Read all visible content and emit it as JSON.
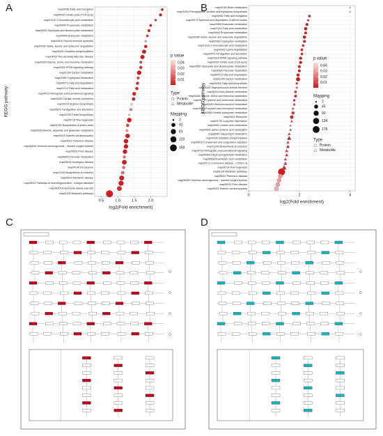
{
  "panel_labels": [
    "A",
    "B",
    "C",
    "D"
  ],
  "chart_data": [
    {
      "type": "dot",
      "x_label": "log2(Fold enrichment)",
      "y_label": "KEGG pathway",
      "categories": [
        "map00062 Fatty acid elongation",
        "map00020 Citrate cycle (TCA cycle)",
        "map01210 2-Oxocarboxylic acid metabolism",
        "map00640 Propanoate metabolism",
        "map00630 Glyoxylate and dicarboxylate metabolism",
        "map00650 Butanoate metabolism",
        "map04918 Thyroid hormone synthesis",
        "map00280 Valine, leucine and isoleucine degradation",
        "map00190 Oxidative phosphorylation",
        "map04932 Non-alcoholic fatty liver disease",
        "map00260 Glycine, serine and threonine metabolism",
        "map03320 PPAR signaling pathway",
        "map01200 Carbon metabolism",
        "map00380 Tryptophan metabolism",
        "map00071 Fatty acid degradation",
        "map01212 Fatty acid metabolism",
        "map04723 Retrograde endocannabinoid signaling",
        "map04260 Cardiac muscle contraction",
        "map00220 Arginine biosynthesis",
        "map04975 Fat digestion and absorption",
        "map00790 Folate biosynthesis",
        "map04714 Thermogenesis",
        "map01230 Biosynthesis of amino acids",
        "map00250 Alanine, aspartate and glutamate metabolism",
        "map05415 Diabetic cardiomyopathy",
        "map05012 Parkinson disease",
        "map05208 Chemical carcinogenesis - reactive oxygen species",
        "map05020 Prion disease",
        "map00620 Pyruvate metabolism",
        "map05016 Huntington disease",
        "map04146 Peroxisome",
        "map01240 Biosynthesis of cofactors",
        "map05010 Alzheimer disease",
        "map05022 Pathways of neurodegeneration - multiple diseases",
        "map05014 Amyotrophic lateral sclerosis",
        "map01100 Metabolic pathways"
      ],
      "values": [
        2.35,
        2.3,
        2.15,
        2.0,
        1.95,
        1.9,
        1.85,
        1.85,
        1.8,
        1.75,
        1.7,
        1.7,
        1.65,
        1.62,
        1.6,
        1.58,
        1.5,
        1.48,
        1.42,
        1.4,
        1.35,
        1.35,
        1.3,
        1.28,
        1.3,
        1.25,
        1.25,
        1.22,
        1.2,
        1.2,
        1.18,
        1.15,
        1.12,
        1.1,
        1.05,
        0.75
      ],
      "sizes": [
        10,
        15,
        8,
        12,
        14,
        10,
        6,
        20,
        40,
        45,
        12,
        18,
        50,
        14,
        18,
        20,
        30,
        25,
        6,
        10,
        5,
        55,
        20,
        12,
        50,
        55,
        50,
        52,
        14,
        60,
        18,
        25,
        65,
        75,
        60,
        159
      ],
      "p_values": [
        0.002,
        0.001,
        0.01,
        0.005,
        0.004,
        0.008,
        0.03,
        0.001,
        0.001,
        0.001,
        0.01,
        0.003,
        0.001,
        0.01,
        0.004,
        0.004,
        0.002,
        0.003,
        0.04,
        0.02,
        0.04,
        0.001,
        0.01,
        0.03,
        0.001,
        0.001,
        0.001,
        0.001,
        0.02,
        0.001,
        0.02,
        0.02,
        0.002,
        0.002,
        0.004,
        0.001
      ],
      "point_types": [
        "Protein",
        "Protein",
        "Protein",
        "Protein",
        "Protein",
        "Protein",
        "Protein",
        "Protein",
        "Protein",
        "Protein",
        "Protein",
        "Protein",
        "Protein",
        "Protein",
        "Protein",
        "Protein",
        "Protein",
        "Protein",
        "Protein",
        "Protein",
        "Protein",
        "Protein",
        "Protein",
        "Protein",
        "Protein",
        "Protein",
        "Protein",
        "Protein",
        "Protein",
        "Protein",
        "Protein",
        "Protein",
        "Protein",
        "Protein",
        "Protein",
        "Protein"
      ],
      "xlim": [
        0.3,
        2.5
      ],
      "xticks": [
        0.5,
        {
          "value": 1,
          "label": "1.0"
        },
        1.5,
        {
          "value": 2,
          "label": "2.0"
        }
      ],
      "grid": true,
      "color_low": "#d7191c",
      "color_high": "#fde0dd",
      "color_legend": {
        "title": "p value",
        "ticks": [
          0.04,
          0.03,
          0.02,
          0.01
        ],
        "plim": [
          0.001,
          0.045
        ]
      },
      "type_legend": {
        "title": "Type",
        "labels": [
          "Protein",
          "Metabolite"
        ]
      },
      "size_legend": {
        "title": "Mapping",
        "values": [
          3,
          42,
          81,
          120,
          159
        ]
      },
      "legend_order": [
        "color",
        "type",
        "size"
      ]
    },
    {
      "type": "dot",
      "x_label": "log2(Fold enrichment)",
      "y_label": "KEGG pathway",
      "categories": [
        "map00780 Biotin metabolism",
        "map00400 Phenylalanine, tyrosine and tryptophan biosynthesis",
        "map00062 Fatty acid elongation",
        "map00072 Synthesis and degradation of ketone bodies",
        "map00650 Butanoate metabolism",
        "map01212 Fatty acid metabolism",
        "map00640 Propanoate metabolism",
        "map00280 Valine, leucine and isoleucine degradation",
        "map00380 Tryptophan metabolism",
        "map01210 2-Oxocarboxylic acid metabolism",
        "map00310 Lysine degradation",
        "map04975 Fat digestion and absorption",
        "map03320 PPAR signaling pathway",
        "map00020 Citrate cycle (TCA cycle)",
        "map00630 Glyoxylate and dicarboxylate metabolism",
        "map00620 Pyruvate metabolism",
        "map00071 Fatty acid degradation",
        "map01200 Carbon metabolism",
        "map00061 Fatty acid biosynthesis",
        "map05150 Staphylococcus aureus infection",
        "map00410 beta-Alanine metabolism",
        "map00260 Glycine, serine and threonine metabolism",
        "map00270 Cysteine and methionine metabolism",
        "map00450 Selenocompound metabolism",
        "map00860 Porphyrin and chlorophyll metabolism",
        "map00562 Inositol phosphate metabolism",
        "map03010 Ribosome",
        "map04730 Long-term depression",
        "map00591 Linoleic acid metabolism",
        "map00592 alpha-Linolenic acid metabolism",
        "map00561 Glycerolipid metabolism",
        "map00190 Oxidative phosphorylation",
        "map04610 Complement and coagulation cascades",
        "map01240 Biosynthesis of cofactors",
        "map04723 Retrograde endocannabinoid signaling",
        "map00564 Glycerophospholipid metabolism",
        "map00590 Arachidonic acid metabolism",
        "map05171 Coronavirus disease - COVID-19",
        "map04714 Thermogenesis",
        "map01100 Metabolic pathways",
        "map05012 Parkinson disease",
        "map05208 Chemical carcinogenesis - reactive oxygen species",
        "map05020 Prion disease",
        "map05415 Diabetic cardiomyopathy"
      ],
      "values": [
        4.0,
        4.0,
        2.4,
        2.35,
        2.3,
        2.25,
        2.25,
        2.2,
        2.2,
        2.15,
        2.1,
        2.1,
        2.05,
        2.05,
        2.0,
        2.0,
        1.95,
        1.95,
        1.9,
        1.9,
        1.85,
        1.85,
        1.8,
        1.8,
        1.75,
        1.75,
        1.7,
        1.7,
        1.65,
        1.65,
        1.6,
        1.6,
        1.55,
        1.55,
        1.5,
        1.5,
        1.45,
        1.45,
        1.4,
        1.3,
        1.25,
        1.2,
        1.15,
        1.1
      ],
      "sizes": [
        2,
        3,
        10,
        5,
        15,
        25,
        15,
        22,
        15,
        10,
        14,
        12,
        20,
        18,
        16,
        15,
        20,
        45,
        8,
        6,
        12,
        14,
        10,
        8,
        6,
        18,
        30,
        8,
        5,
        7,
        10,
        35,
        12,
        20,
        15,
        16,
        12,
        25,
        50,
        178,
        55,
        50,
        48,
        52
      ],
      "p_values": [
        0.04,
        0.04,
        0.001,
        0.005,
        0.001,
        0.001,
        0.002,
        0.001,
        0.003,
        0.005,
        0.004,
        0.006,
        0.002,
        0.001,
        0.003,
        0.002,
        0.001,
        0.001,
        0.01,
        0.02,
        0.008,
        0.005,
        0.01,
        0.015,
        0.02,
        0.006,
        0.003,
        0.01,
        0.02,
        0.015,
        0.01,
        0.001,
        0.008,
        0.004,
        0.01,
        0.006,
        0.01,
        0.008,
        0.005,
        0.001,
        0.03,
        0.03,
        0.03,
        0.035
      ],
      "point_types": [
        "Protein",
        "Protein",
        "Protein",
        "Protein",
        "Protein",
        "Protein",
        "Protein",
        "Protein",
        "Protein",
        "Protein",
        "Protein",
        "Protein",
        "Protein",
        "Protein",
        "Protein",
        "Protein",
        "Protein",
        "Protein",
        "Protein",
        "Protein",
        "Protein",
        "Protein",
        "Protein",
        "Protein",
        "Protein",
        "Protein",
        "Protein",
        "Metabolite",
        "Metabolite",
        "Metabolite",
        "Metabolite",
        "Metabolite",
        "Metabolite",
        "Metabolite",
        "Metabolite",
        "Metabolite",
        "Metabolite",
        "Metabolite",
        "Metabolite",
        "Protein",
        "Protein",
        "Protein",
        "Protein",
        "Protein"
      ],
      "xlim": [
        0,
        4.2
      ],
      "xticks": [
        0,
        2,
        4
      ],
      "grid": true,
      "color_low": "#d7191c",
      "color_high": "#fde0dd",
      "color_legend": {
        "title": "p value",
        "ticks": [
          0.04,
          0.03,
          0.02,
          0.01
        ],
        "plim": [
          0.001,
          0.045
        ]
      },
      "type_legend": {
        "title": "Type",
        "labels": [
          "Protein",
          "Metabolite"
        ]
      },
      "size_legend": {
        "title": "Mapping",
        "values": [
          2,
          45,
          90,
          134,
          178
        ]
      },
      "legend_order": [
        "color",
        "size",
        "type"
      ]
    }
  ]
}
